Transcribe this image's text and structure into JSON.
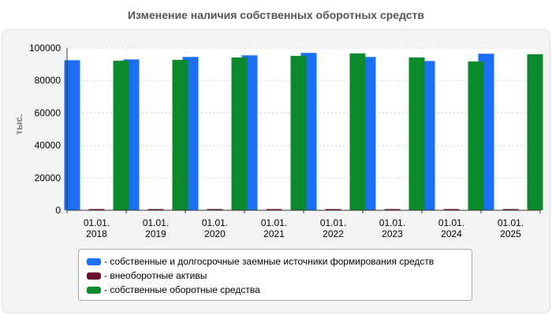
{
  "chart_data": {
    "type": "bar",
    "title": "Изменение наличия собственных оборотных средств",
    "ylabel": "тыс.",
    "ylim": [
      0,
      100000
    ],
    "yticks": [
      0,
      20000,
      40000,
      60000,
      80000,
      100000
    ],
    "categories": [
      [
        "01.01.",
        "2018"
      ],
      [
        "01.01.",
        "2019"
      ],
      [
        "01.01.",
        "2020"
      ],
      [
        "01.01.",
        "2021"
      ],
      [
        "01.01.",
        "2022"
      ],
      [
        "01.01.",
        "2023"
      ],
      [
        "01.01.",
        "2024"
      ],
      [
        "01.01.",
        "2025"
      ]
    ],
    "grid": true,
    "legend_position": "bottom",
    "series": [
      {
        "name": "собственные и долгосрочные заемные источники формирования средств",
        "color": "#1a6ff5",
        "values": [
          92500,
          93000,
          94500,
          95500,
          97000,
          94500,
          92000,
          96500
        ]
      },
      {
        "name": "внеоборотные активы",
        "color": "#6b0f2e",
        "values": [
          300,
          300,
          300,
          300,
          300,
          300,
          300,
          300
        ]
      },
      {
        "name": "собственные оборотные средства",
        "color": "#0a8a2c",
        "values": [
          92200,
          92700,
          94200,
          95200,
          96700,
          94200,
          91700,
          96200
        ]
      }
    ]
  }
}
